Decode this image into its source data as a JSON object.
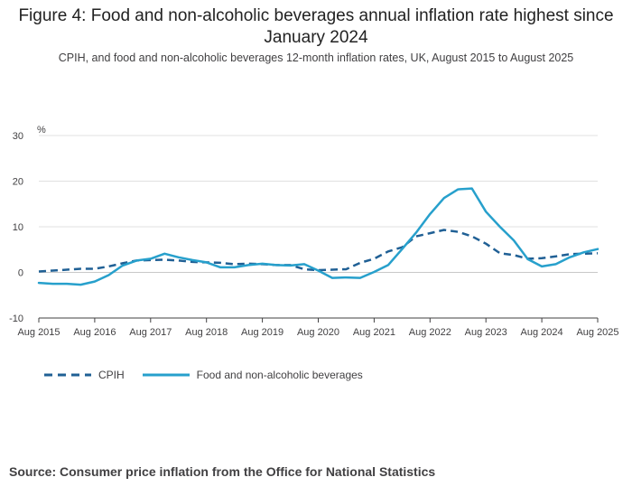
{
  "title": "Figure 4: Food and non-alcoholic beverages annual inflation rate highest since January 2024",
  "subtitle": "CPIH, and food and non-alcoholic beverages 12-month inflation rates, UK, August 2015 to August 2025",
  "source": "Source: Consumer price inflation from the Office for National Statistics",
  "colors": {
    "cpih": "#206095",
    "food": "#27a0cc",
    "grid": "#e0e0e0",
    "axis": "#414042"
  },
  "chart_data": {
    "type": "line",
    "y_unit_label": "%",
    "ylim": [
      -10,
      30
    ],
    "y_ticks": [
      -10,
      0,
      10,
      20,
      30
    ],
    "x_tick_labels": [
      "Aug 2015",
      "Aug 2016",
      "Aug 2017",
      "Aug 2018",
      "Aug 2019",
      "Aug 2020",
      "Aug 2021",
      "Aug 2022",
      "Aug 2023",
      "Aug 2024",
      "Aug 2025"
    ],
    "grid": true,
    "legend_position": "bottom-left",
    "x_points": [
      "Aug 2015",
      "Nov 2015",
      "Feb 2016",
      "May 2016",
      "Aug 2016",
      "Nov 2016",
      "Feb 2017",
      "May 2017",
      "Aug 2017",
      "Nov 2017",
      "Feb 2018",
      "May 2018",
      "Aug 2018",
      "Nov 2018",
      "Feb 2019",
      "May 2019",
      "Aug 2019",
      "Nov 2019",
      "Feb 2020",
      "May 2020",
      "Aug 2020",
      "Nov 2020",
      "Feb 2021",
      "May 2021",
      "Aug 2021",
      "Nov 2021",
      "Feb 2022",
      "May 2022",
      "Aug 2022",
      "Nov 2022",
      "Feb 2023",
      "May 2023",
      "Aug 2023",
      "Nov 2023",
      "Feb 2024",
      "May 2024",
      "Aug 2024",
      "Nov 2024",
      "Feb 2025",
      "May 2025",
      "Aug 2025"
    ],
    "series": [
      {
        "name": "CPIH",
        "style": "dashed",
        "values": [
          0.2,
          0.4,
          0.6,
          0.8,
          0.8,
          1.3,
          2.0,
          2.6,
          2.7,
          2.8,
          2.6,
          2.3,
          2.2,
          2.1,
          1.8,
          1.9,
          1.8,
          1.6,
          1.6,
          0.7,
          0.5,
          0.6,
          0.7,
          2.1,
          3.0,
          4.6,
          5.5,
          7.9,
          8.6,
          9.3,
          8.9,
          7.9,
          6.3,
          4.2,
          3.8,
          3.0,
          3.1,
          3.5,
          4.0,
          4.1,
          4.2
        ]
      },
      {
        "name": "Food and non-alcoholic beverages",
        "style": "solid",
        "values": [
          -2.3,
          -2.5,
          -2.5,
          -2.7,
          -2.0,
          -0.6,
          1.5,
          2.6,
          3.0,
          4.1,
          3.3,
          2.7,
          2.2,
          1.1,
          1.1,
          1.6,
          1.9,
          1.6,
          1.5,
          1.8,
          0.4,
          -1.2,
          -1.1,
          -1.2,
          0.1,
          1.6,
          5.1,
          8.7,
          12.8,
          16.3,
          18.2,
          18.4,
          13.3,
          10.0,
          7.0,
          2.9,
          1.3,
          1.8,
          3.3,
          4.4,
          5.1
        ]
      }
    ]
  }
}
